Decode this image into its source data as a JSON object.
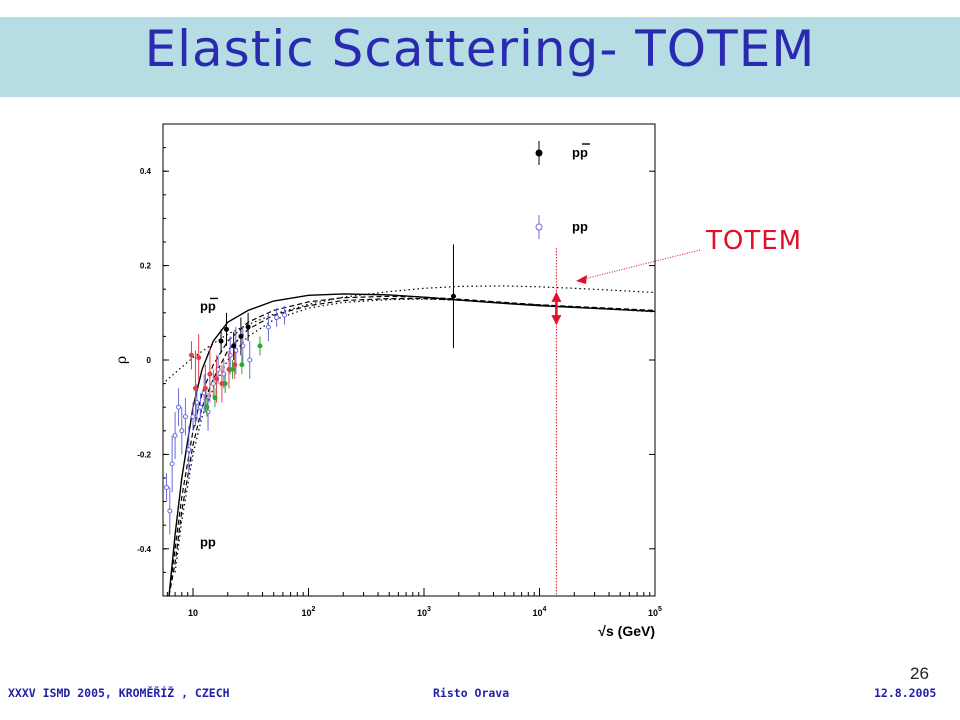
{
  "slide": {
    "title": "Elastic Scattering- TOTEM",
    "annotation": "TOTEM",
    "page_number": "26",
    "footer_left": "XXXV ISMD 2005, KROMĚŘÍŽ , CZECH",
    "footer_center": "Risto Orava",
    "footer_right": "12.8.2005"
  },
  "colors": {
    "banner": "#b7dde4",
    "title": "#2a2ab0",
    "annotation": "#e0102a",
    "footer": "#1f1fa8",
    "pbar_points": "#000000",
    "pp_points": "#6a6adc",
    "red_points": "#e04040",
    "green_points": "#2ea82e"
  },
  "chart_data": {
    "type": "scatter",
    "ylabel": "ρ",
    "xlabel": "√s (GeV)",
    "xscale": "log",
    "xlim": [
      5.5,
      100000
    ],
    "ylim": [
      -0.5,
      0.5
    ],
    "x_ticks": [
      {
        "value": 10,
        "label": "10"
      },
      {
        "value": 100,
        "base": "10",
        "exp": "2"
      },
      {
        "value": 1000,
        "base": "10",
        "exp": "3"
      },
      {
        "value": 10000,
        "base": "10",
        "exp": "4"
      },
      {
        "value": 100000,
        "base": "10",
        "exp": "5"
      }
    ],
    "y_ticks": [
      {
        "value": 0.4,
        "label": "0.4"
      },
      {
        "value": 0.2,
        "label": "0.2"
      },
      {
        "value": 0,
        "label": "0"
      },
      {
        "value": -0.2,
        "label": "-0.2"
      },
      {
        "value": -0.4,
        "label": "-0.4"
      }
    ],
    "legend": [
      {
        "label_base": "pp",
        "bar": true,
        "marker": "filled",
        "color": "#000000"
      },
      {
        "label_base": "pp",
        "bar": false,
        "marker": "open",
        "color": "#6a6adc"
      }
    ],
    "curve_labels": [
      {
        "text": "pp",
        "bar": true,
        "x": 11.5,
        "y": 0.105
      },
      {
        "text": "pp",
        "bar": false,
        "x": 11.5,
        "y": -0.395
      }
    ],
    "series": [
      {
        "style": "solid",
        "points": [
          [
            6.2,
            -0.5
          ],
          [
            7,
            -0.37
          ],
          [
            8,
            -0.25
          ],
          [
            10,
            -0.1
          ],
          [
            12,
            -0.02
          ],
          [
            15,
            0.04
          ],
          [
            20,
            0.08
          ],
          [
            30,
            0.105
          ],
          [
            50,
            0.125
          ],
          [
            100,
            0.137
          ],
          [
            200,
            0.14
          ],
          [
            500,
            0.138
          ],
          [
            1000,
            0.133
          ],
          [
            2000,
            0.127
          ],
          [
            5000,
            0.12
          ],
          [
            10000,
            0.115
          ],
          [
            100000,
            0.103
          ]
        ]
      },
      {
        "style": "dashed",
        "points": [
          [
            6.2,
            -0.5
          ],
          [
            7,
            -0.4
          ],
          [
            8,
            -0.29
          ],
          [
            10,
            -0.15
          ],
          [
            12,
            -0.07
          ],
          [
            15,
            -0.01
          ],
          [
            20,
            0.04
          ],
          [
            30,
            0.08
          ],
          [
            50,
            0.105
          ],
          [
            100,
            0.123
          ],
          [
            200,
            0.132
          ],
          [
            500,
            0.135
          ],
          [
            1000,
            0.133
          ],
          [
            2000,
            0.129
          ],
          [
            5000,
            0.122
          ],
          [
            10000,
            0.117
          ],
          [
            100000,
            0.105
          ]
        ]
      },
      {
        "style": "dashed",
        "points": [
          [
            6.2,
            -0.5
          ],
          [
            7,
            -0.43
          ],
          [
            8,
            -0.32
          ],
          [
            10,
            -0.18
          ],
          [
            12,
            -0.1
          ],
          [
            15,
            -0.04
          ],
          [
            20,
            0.02
          ],
          [
            30,
            0.065
          ],
          [
            50,
            0.095
          ],
          [
            100,
            0.115
          ],
          [
            200,
            0.126
          ],
          [
            500,
            0.13
          ],
          [
            1000,
            0.13
          ],
          [
            2000,
            0.127
          ],
          [
            5000,
            0.121
          ],
          [
            10000,
            0.116
          ],
          [
            100000,
            0.104
          ]
        ]
      },
      {
        "style": "dotted",
        "points": [
          [
            7,
            -0.45
          ],
          [
            8,
            -0.34
          ],
          [
            10,
            -0.2
          ],
          [
            12,
            -0.12
          ],
          [
            15,
            -0.06
          ],
          [
            20,
            0.0
          ],
          [
            30,
            0.05
          ],
          [
            50,
            0.085
          ],
          [
            100,
            0.11
          ],
          [
            200,
            0.122
          ],
          [
            500,
            0.128
          ],
          [
            1000,
            0.129
          ],
          [
            2000,
            0.127
          ],
          [
            5000,
            0.121
          ],
          [
            10000,
            0.117
          ],
          [
            100000,
            0.102
          ]
        ]
      },
      {
        "style": "dotted",
        "points": [
          [
            5.8,
            -0.045
          ],
          [
            8,
            -0.015
          ],
          [
            10,
            0.005
          ],
          [
            15,
            0.035
          ],
          [
            20,
            0.055
          ],
          [
            30,
            0.075
          ],
          [
            50,
            0.097
          ],
          [
            100,
            0.118
          ],
          [
            200,
            0.133
          ],
          [
            500,
            0.145
          ],
          [
            1000,
            0.152
          ],
          [
            2000,
            0.156
          ],
          [
            5000,
            0.157
          ],
          [
            10000,
            0.155
          ],
          [
            20000,
            0.152
          ],
          [
            50000,
            0.147
          ],
          [
            100000,
            0.143
          ]
        ]
      }
    ],
    "pbar_points": [
      {
        "x": 17.5,
        "y": 0.04,
        "err": 0.025
      },
      {
        "x": 19.5,
        "y": 0.065,
        "err": 0.035
      },
      {
        "x": 22.5,
        "y": 0.03,
        "err": 0.03
      },
      {
        "x": 26,
        "y": 0.05,
        "err": 0.04
      },
      {
        "x": 30,
        "y": 0.07,
        "err": 0.03
      },
      {
        "x": 1800,
        "y": 0.135,
        "err": 0.11
      }
    ],
    "pp_points": [
      {
        "x": 5.9,
        "y": -0.27,
        "err": 0.03
      },
      {
        "x": 6.3,
        "y": -0.32,
        "err": 0.05
      },
      {
        "x": 6.6,
        "y": -0.22,
        "err": 0.06
      },
      {
        "x": 7.0,
        "y": -0.16,
        "err": 0.05
      },
      {
        "x": 7.5,
        "y": -0.1,
        "err": 0.04
      },
      {
        "x": 8.0,
        "y": -0.15,
        "err": 0.05
      },
      {
        "x": 8.6,
        "y": -0.12,
        "err": 0.04
      },
      {
        "x": 9.2,
        "y": -0.19,
        "err": 0.05
      },
      {
        "x": 10.0,
        "y": -0.12,
        "err": 0.03
      },
      {
        "x": 10.8,
        "y": -0.09,
        "err": 0.04
      },
      {
        "x": 11.6,
        "y": -0.1,
        "err": 0.03
      },
      {
        "x": 12.5,
        "y": -0.07,
        "err": 0.04
      },
      {
        "x": 13.5,
        "y": -0.11,
        "err": 0.04
      },
      {
        "x": 15.0,
        "y": -0.05,
        "err": 0.03
      },
      {
        "x": 16.5,
        "y": -0.02,
        "err": 0.03
      },
      {
        "x": 18.5,
        "y": -0.03,
        "err": 0.03
      },
      {
        "x": 21.0,
        "y": 0.01,
        "err": 0.04
      },
      {
        "x": 23.5,
        "y": 0.02,
        "err": 0.05
      },
      {
        "x": 27.0,
        "y": 0.03,
        "err": 0.04
      },
      {
        "x": 31.0,
        "y": 0.0,
        "err": 0.04
      },
      {
        "x": 45.0,
        "y": 0.07,
        "err": 0.03
      },
      {
        "x": 53.0,
        "y": 0.09,
        "err": 0.02
      },
      {
        "x": 62.0,
        "y": 0.095,
        "err": 0.02
      }
    ],
    "red_points": [
      {
        "x": 9.7,
        "y": 0.01,
        "err": 0.03
      },
      {
        "x": 10.5,
        "y": -0.06,
        "err": 0.08
      },
      {
        "x": 11.2,
        "y": 0.005,
        "err": 0.05
      },
      {
        "x": 12.8,
        "y": -0.06,
        "err": 0.05
      },
      {
        "x": 14.0,
        "y": -0.03,
        "err": 0.06
      },
      {
        "x": 16.0,
        "y": -0.04,
        "err": 0.05
      },
      {
        "x": 17.8,
        "y": -0.05,
        "err": 0.04
      },
      {
        "x": 20.5,
        "y": -0.02,
        "err": 0.04
      },
      {
        "x": 23.0,
        "y": -0.01,
        "err": 0.03
      }
    ],
    "green_points": [
      {
        "x": 13.2,
        "y": -0.1,
        "err": 0.02
      },
      {
        "x": 15.5,
        "y": -0.08,
        "err": 0.02
      },
      {
        "x": 19.0,
        "y": -0.05,
        "err": 0.02
      },
      {
        "x": 22.0,
        "y": -0.02,
        "err": 0.02
      },
      {
        "x": 26.5,
        "y": -0.01,
        "err": 0.02
      },
      {
        "x": 38.0,
        "y": 0.03,
        "err": 0.02
      }
    ],
    "totem": {
      "sqrt_s": 14000,
      "rho_range": [
        0.078,
        0.14
      ]
    }
  }
}
